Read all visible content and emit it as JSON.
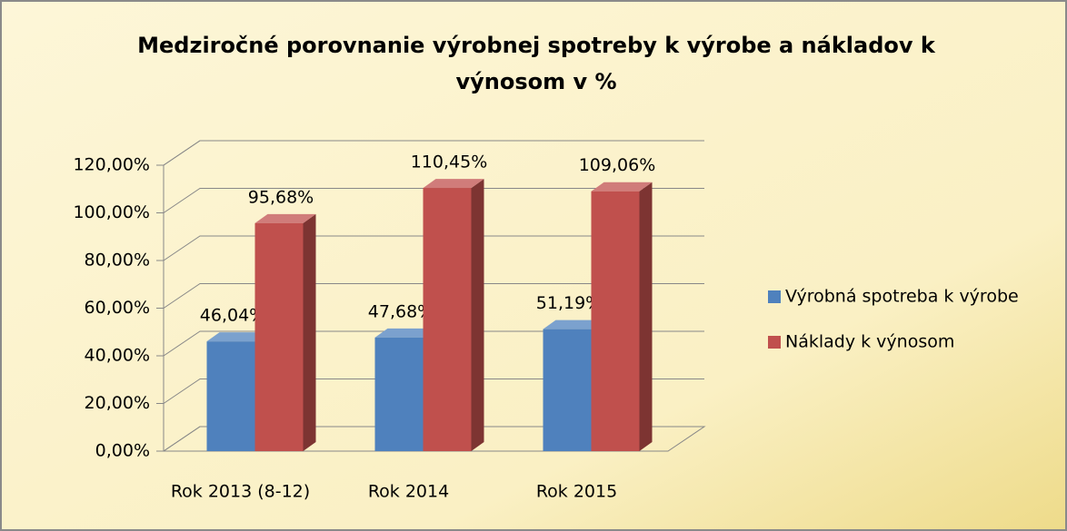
{
  "chart_data": {
    "type": "bar3d",
    "title": "Medziročné porovnanie výrobnej spotreby k výrobe a nákladov k výnosom v %",
    "categories": [
      "Rok 2013 (8-12)",
      "Rok 2014",
      "Rok 2015"
    ],
    "series": [
      {
        "name": "Výrobná spotreba k výrobe",
        "color": "#4f81bd",
        "values": [
          46.04,
          47.68,
          51.19
        ],
        "value_labels": [
          "46,04%",
          "47,68%",
          "51,19%"
        ]
      },
      {
        "name": "Náklady k výnosom",
        "color": "#c0504d",
        "values": [
          95.68,
          110.45,
          109.06
        ],
        "value_labels": [
          "95,68%",
          "110,45%",
          "109,06%"
        ]
      }
    ],
    "ylim": [
      0,
      120
    ],
    "yticks": [
      {
        "value": 0,
        "label": "0,00%"
      },
      {
        "value": 20,
        "label": "20,00%"
      },
      {
        "value": 40,
        "label": "40,00%"
      },
      {
        "value": 60,
        "label": "60,00%"
      },
      {
        "value": 80,
        "label": "80,00%"
      },
      {
        "value": 100,
        "label": "100,00%"
      },
      {
        "value": 120,
        "label": "120,00%"
      }
    ],
    "grid": true,
    "legend": "right"
  }
}
